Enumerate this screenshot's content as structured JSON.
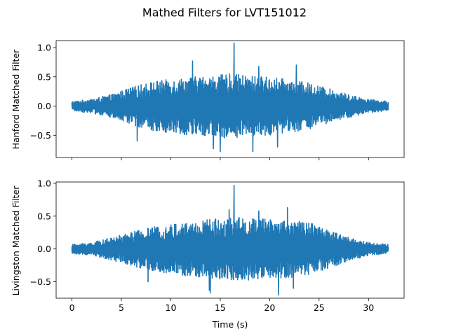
{
  "chart_data": {
    "type": "line",
    "suptitle": "Mathed Filters for LVT151012",
    "xlabel": "Time (s)",
    "xlim": [
      -1.6,
      33.6
    ],
    "xticks": [
      0,
      5,
      10,
      15,
      20,
      25,
      30
    ],
    "xtick_labels": [
      "0",
      "5",
      "10",
      "15",
      "20",
      "25",
      "30"
    ],
    "line_color": "#1f77b4",
    "grid": false,
    "panels": [
      {
        "ylabel": "Hanford Matched Filter",
        "ylim": [
          -0.88,
          1.12
        ],
        "yticks": [
          -0.5,
          0.0,
          0.5,
          1.0
        ],
        "ytick_labels": [
          "−0.5",
          "0.0",
          "0.5",
          "1.0"
        ],
        "show_xtick_labels": false,
        "series": [
          {
            "x_range": [
              0,
              32
            ],
            "envelope_x": [
              0,
              2,
              4,
              6,
              8,
              10,
              12,
              14,
              16,
              18,
              20,
              22,
              24,
              26,
              28,
              30,
              32
            ],
            "envelope_upper": [
              0.08,
              0.12,
              0.2,
              0.32,
              0.42,
              0.46,
              0.5,
              0.52,
              0.55,
              0.52,
              0.5,
              0.45,
              0.4,
              0.3,
              0.2,
              0.12,
              0.08
            ],
            "envelope_lower": [
              -0.08,
              -0.12,
              -0.2,
              -0.32,
              -0.42,
              -0.46,
              -0.5,
              -0.52,
              -0.55,
              -0.52,
              -0.5,
              -0.45,
              -0.4,
              -0.3,
              -0.2,
              -0.12,
              -0.08
            ],
            "spikes": [
              {
                "x": 16.4,
                "y": 1.08
              },
              {
                "x": 12.2,
                "y": 0.77
              },
              {
                "x": 14.3,
                "y": -0.73
              },
              {
                "x": 15.0,
                "y": -0.78
              },
              {
                "x": 18.3,
                "y": -0.78
              },
              {
                "x": 20.8,
                "y": -0.7
              },
              {
                "x": 6.6,
                "y": -0.6
              },
              {
                "x": 22.7,
                "y": 0.7
              },
              {
                "x": 18.9,
                "y": 0.68
              }
            ]
          }
        ]
      },
      {
        "ylabel": "Livingston Matched Filter",
        "ylim": [
          -0.75,
          1.02
        ],
        "yticks": [
          -0.5,
          0.0,
          0.5,
          1.0
        ],
        "ytick_labels": [
          "−0.5",
          "0.0",
          "0.5",
          "1.0"
        ],
        "show_xtick_labels": true,
        "series": [
          {
            "x_range": [
              0,
              32
            ],
            "envelope_x": [
              0,
              2,
              4,
              6,
              8,
              10,
              12,
              14,
              16,
              18,
              20,
              22,
              24,
              26,
              28,
              30,
              32
            ],
            "envelope_upper": [
              0.07,
              0.1,
              0.17,
              0.26,
              0.33,
              0.38,
              0.42,
              0.46,
              0.48,
              0.48,
              0.46,
              0.44,
              0.4,
              0.3,
              0.18,
              0.1,
              0.07
            ],
            "envelope_lower": [
              -0.07,
              -0.1,
              -0.17,
              -0.26,
              -0.33,
              -0.38,
              -0.42,
              -0.46,
              -0.48,
              -0.48,
              -0.46,
              -0.44,
              -0.4,
              -0.3,
              -0.18,
              -0.1,
              -0.07
            ],
            "spikes": [
              {
                "x": 16.4,
                "y": 0.97
              },
              {
                "x": 15.9,
                "y": 0.6
              },
              {
                "x": 13.9,
                "y": -0.63
              },
              {
                "x": 14.0,
                "y": -0.67
              },
              {
                "x": 20.9,
                "y": -0.7
              },
              {
                "x": 21.8,
                "y": 0.63
              },
              {
                "x": 18.9,
                "y": 0.58
              },
              {
                "x": 7.7,
                "y": -0.5
              },
              {
                "x": 22.4,
                "y": -0.6
              }
            ]
          }
        ]
      }
    ]
  }
}
